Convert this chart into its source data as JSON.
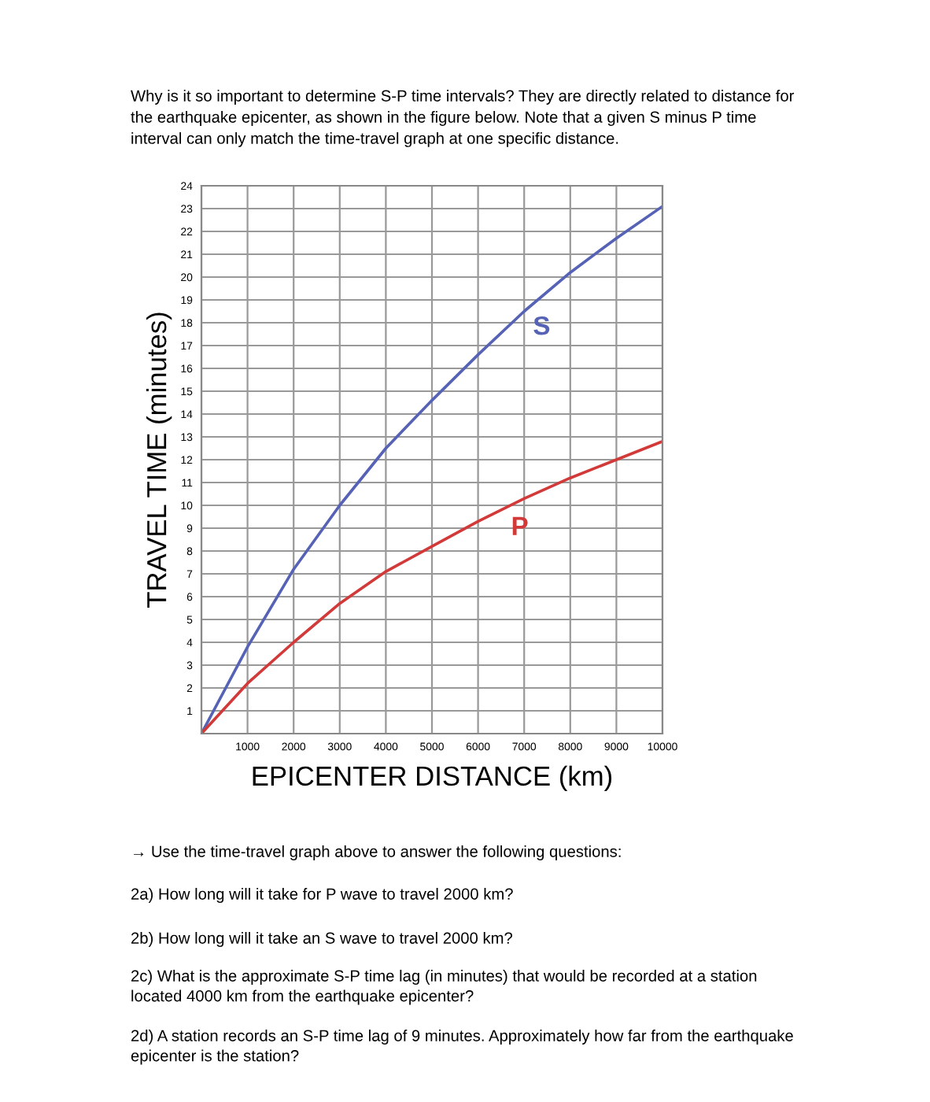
{
  "chart_data": {
    "type": "line",
    "title": "Why is it so important to determine S-P time intervals? They are directly related to distance for\nthe earthquake epicenter, as shown in the figure below. Note that a given S minus P time\ninterval can only match the time-travel graph at one specific distance.",
    "xlabel": "EPICENTER DISTANCE (km)",
    "ylabel": "TRAVEL TIME (minutes)",
    "x": [
      0,
      1000,
      2000,
      3000,
      4000,
      5000,
      6000,
      7000,
      8000,
      9000,
      10000
    ],
    "series": [
      {
        "name": "S",
        "color": "#5562b5",
        "values": [
          0,
          3.8,
          7.2,
          10,
          12.5,
          14.6,
          16.6,
          18.5,
          20.2,
          21.7,
          23.1
        ]
      },
      {
        "name": "P",
        "color": "#d23a3a",
        "values": [
          0,
          2.2,
          4.0,
          5.7,
          7.1,
          8.2,
          9.3,
          10.3,
          11.2,
          12.0,
          12.8
        ]
      }
    ],
    "xlim": [
      0,
      10000
    ],
    "xticks": [
      {
        "value": 0,
        "label": null
      },
      1000,
      2000,
      3000,
      4000,
      5000,
      6000,
      7000,
      8000,
      9000,
      10000
    ],
    "ylim": [
      0,
      24
    ],
    "yticks": [
      {
        "value": 0,
        "label": null
      },
      1,
      2,
      3,
      4,
      5,
      6,
      7,
      8,
      9,
      10,
      11,
      12,
      13,
      14,
      15,
      16,
      17,
      18,
      19,
      20,
      21,
      22,
      23,
      24
    ],
    "grid": true,
    "marker": "none",
    "line_style": "solid",
    "legend": false,
    "annotations": [
      "→ Use the time-travel graph above to answer the following questions:",
      "2a) How long will it take for P wave to travel 2000 km?",
      "2b) How long will it take an S wave to travel 2000 km?",
      "2c) What is the approximate S-P time lag (in minutes) that would be recorded at a station\nlocated 4000 km from the earthquake epicenter?",
      "2d) A station records an S-P time lag of 9 minutes. Approximately how far from the earthquake\nepicenter is the station?"
    ]
  }
}
